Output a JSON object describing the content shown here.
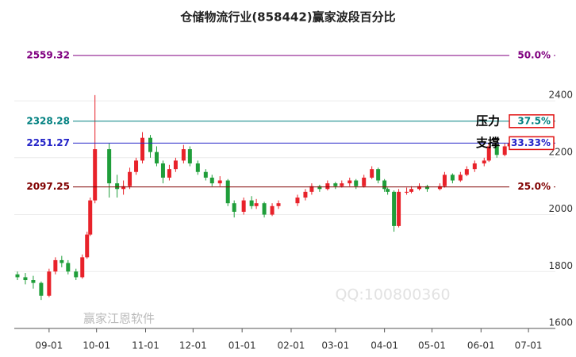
{
  "chart_data": {
    "type": "candlestick",
    "title": "仓储物流行业(858442)赢家波段百分比",
    "x": [
      "08-12",
      "08-17",
      "08-22",
      "08-27",
      "09-01",
      "09-05",
      "09-09",
      "09-13",
      "09-18",
      "09-22",
      "09-25",
      "09-27",
      "09-30",
      "10-09",
      "10-14",
      "10-18",
      "10-22",
      "10-26",
      "10-30",
      "11-04",
      "11-08",
      "11-12",
      "11-16",
      "11-20",
      "11-25",
      "11-29",
      "12-04",
      "12-09",
      "12-13",
      "12-18",
      "12-23",
      "12-27",
      "01-02",
      "01-07",
      "01-10",
      "01-15",
      "01-20",
      "01-24",
      "02-05",
      "02-10",
      "02-14",
      "02-19",
      "02-24",
      "03-01",
      "03-05",
      "03-10",
      "03-14",
      "03-19",
      "03-24",
      "03-28",
      "04-01",
      "04-03",
      "04-07",
      "04-10",
      "04-15",
      "04-18",
      "04-23",
      "04-28",
      "05-06",
      "05-09",
      "05-14",
      "05-19",
      "05-23",
      "05-28",
      "06-03",
      "06-06",
      "06-11",
      "06-16",
      "06-19"
    ],
    "open": [
      1790,
      1780,
      1770,
      1760,
      1715,
      1800,
      1840,
      1830,
      1800,
      1780,
      1850,
      1930,
      2050,
      2230,
      2110,
      2090,
      2100,
      2150,
      2190,
      2270,
      2220,
      2180,
      2130,
      2160,
      2190,
      2230,
      2180,
      2150,
      2130,
      2110,
      2120,
      2040,
      2010,
      2050,
      2030,
      2040,
      2000,
      2030,
      2040,
      2060,
      2080,
      2100,
      2090,
      2110,
      2100,
      2110,
      2120,
      2100,
      2130,
      2160,
      2120,
      2090,
      2080,
      1960,
      2080,
      2080,
      2090,
      2100,
      2090,
      2100,
      2140,
      2120,
      2140,
      2160,
      2180,
      2190,
      2240,
      2210,
      2240
    ],
    "high": [
      1800,
      1795,
      1785,
      1765,
      1810,
      1850,
      1855,
      1840,
      1810,
      1860,
      1940,
      2060,
      2420,
      2250,
      2140,
      2120,
      2165,
      2200,
      2290,
      2280,
      2240,
      2190,
      2175,
      2200,
      2245,
      2240,
      2190,
      2160,
      2140,
      2135,
      2125,
      2050,
      2060,
      2065,
      2055,
      2045,
      2040,
      2050,
      2070,
      2090,
      2110,
      2105,
      2120,
      2115,
      2120,
      2130,
      2125,
      2140,
      2170,
      2165,
      2125,
      2095,
      2085,
      2090,
      2095,
      2100,
      2110,
      2105,
      2110,
      2150,
      2145,
      2150,
      2170,
      2190,
      2200,
      2250,
      2245,
      2250,
      2260
    ],
    "low": [
      1770,
      1755,
      1740,
      1700,
      1710,
      1790,
      1815,
      1790,
      1770,
      1775,
      1845,
      1925,
      2040,
      2060,
      2060,
      2070,
      2090,
      2140,
      2180,
      2200,
      2170,
      2110,
      2120,
      2150,
      2180,
      2170,
      2140,
      2120,
      2100,
      2100,
      2030,
      1990,
      2000,
      2020,
      2020,
      1990,
      1995,
      2020,
      2030,
      2050,
      2070,
      2080,
      2085,
      2090,
      2095,
      2100,
      2090,
      2095,
      2125,
      2110,
      2080,
      2070,
      1940,
      1955,
      2070,
      2075,
      2085,
      2080,
      2085,
      2095,
      2110,
      2115,
      2135,
      2150,
      2170,
      2185,
      2200,
      2205,
      2230
    ],
    "close": [
      1780,
      1770,
      1760,
      1715,
      1800,
      1840,
      1830,
      1800,
      1780,
      1850,
      1930,
      2050,
      2230,
      2110,
      2090,
      2100,
      2150,
      2190,
      2270,
      2220,
      2180,
      2130,
      2160,
      2190,
      2230,
      2180,
      2150,
      2130,
      2110,
      2120,
      2040,
      2010,
      2050,
      2030,
      2040,
      2000,
      2030,
      2040,
      2060,
      2080,
      2100,
      2090,
      2110,
      2100,
      2110,
      2120,
      2100,
      2130,
      2160,
      2120,
      2090,
      2080,
      1960,
      2080,
      2080,
      2090,
      2100,
      2090,
      2100,
      2140,
      2120,
      2140,
      2160,
      2180,
      2190,
      2240,
      2210,
      2240,
      2250
    ],
    "up_color": "#e8222a",
    "down_color": "#1f9e3a",
    "xlim": [
      "08-10",
      "07-18"
    ],
    "xticks": [
      "09-01",
      "10-01",
      "11-01",
      "12-01",
      "01-01",
      "02-01",
      "03-01",
      "04-01",
      "05-01",
      "06-01",
      "07-01"
    ],
    "ylim": [
      1600,
      2640
    ],
    "yticks": [
      1600,
      1800,
      2000,
      2200,
      2400
    ],
    "grid": true,
    "levels": [
      {
        "price": 2559.32,
        "ratio": {
          "value": 50,
          "label": "50.0%"
        },
        "color": "#800080"
      },
      {
        "price": 2328.28,
        "ratio": {
          "value": 37.5,
          "label": "37.5%"
        },
        "color": "#008080",
        "note": "压力"
      },
      {
        "price": 2251.27,
        "ratio": {
          "value": 33.33,
          "label": "33.33%"
        },
        "color": "#2424c8",
        "note": "支撑"
      },
      {
        "price": 2097.25,
        "ratio": {
          "value": 25,
          "label": "25.0%"
        },
        "color": "#800000"
      }
    ],
    "watermarks": [
      "赢家江恩软件",
      "QQ:100800360"
    ]
  }
}
